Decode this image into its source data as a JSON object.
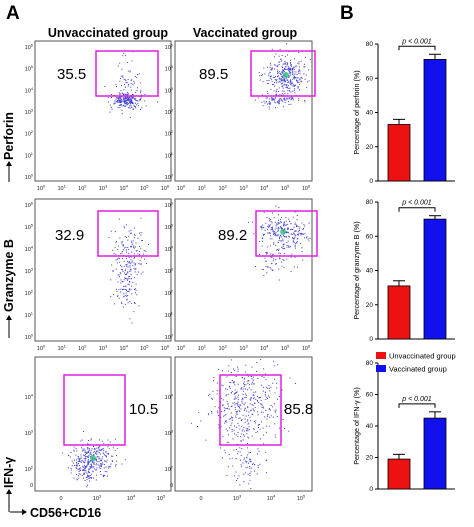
{
  "panel_labels": {
    "a": "A",
    "b": "B"
  },
  "flow": {
    "col_headers": [
      "Unvaccinated group",
      "Vaccinated group"
    ],
    "row_labels": [
      "Perforin",
      "Granzyme B",
      "IFN-γ"
    ],
    "x_axis_label": "CD56+CD16",
    "tick_exponents": [
      "0",
      "1",
      "2",
      "3",
      "4",
      "5",
      "6"
    ],
    "tick_base": "10",
    "low_ticks": [
      "0"
    ],
    "percentages": [
      [
        "35.5",
        "89.5"
      ],
      [
        "32.9",
        "89.2"
      ],
      [
        "10.5",
        "85.8"
      ]
    ],
    "gate_color": "#e020e0",
    "dot_color": "#3a3ad0"
  },
  "chart_data": [
    {
      "type": "bar",
      "categories": [
        "Unvaccinated group",
        "Vaccinated group"
      ],
      "values": [
        33,
        71
      ],
      "errors": [
        3,
        3
      ],
      "ylabel": "Percentage of perforin (%)",
      "ylim": [
        0,
        80
      ],
      "yticks": [
        "0",
        "20",
        "40",
        "60",
        "80"
      ],
      "p_label": "p < 0.001",
      "colors": [
        "#ee1111",
        "#1111ee"
      ]
    },
    {
      "type": "bar",
      "categories": [
        "Unvaccinated group",
        "Vaccinated group"
      ],
      "values": [
        31,
        70
      ],
      "errors": [
        3,
        2
      ],
      "ylabel": "Percentage of granzyme B (%)",
      "ylim": [
        0,
        80
      ],
      "yticks": [
        "0",
        "20",
        "40",
        "60",
        "80"
      ],
      "p_label": "p < 0.001",
      "colors": [
        "#ee1111",
        "#1111ee"
      ]
    },
    {
      "type": "bar",
      "categories": [
        "Unvaccinated group",
        "Vaccinated group"
      ],
      "values": [
        19,
        45
      ],
      "errors": [
        3,
        4
      ],
      "ylabel": "Percentage of IFN-γ (%)",
      "ylim": [
        0,
        80
      ],
      "yticks": [
        "0",
        "20",
        "40",
        "60",
        "80"
      ],
      "p_label": "p < 0.001",
      "colors": [
        "#ee1111",
        "#1111ee"
      ],
      "legend": {
        "placement": "top",
        "entries": [
          "Unvaccinated group",
          "Vaccinated group"
        ]
      }
    }
  ]
}
